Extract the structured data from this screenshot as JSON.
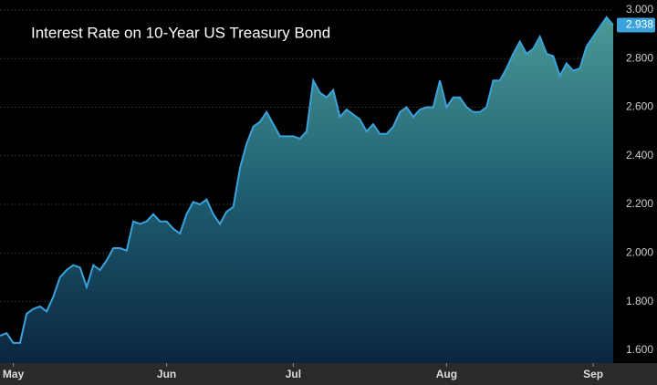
{
  "chart_data": {
    "type": "area",
    "title": "Interest Rate on 10-Year US Treasury Bond",
    "categories": [
      null,
      null,
      "May",
      null,
      null,
      null,
      null,
      null,
      null,
      null,
      null,
      null,
      null,
      null,
      null,
      null,
      null,
      null,
      null,
      null,
      null,
      null,
      null,
      null,
      null,
      "Jun",
      null,
      null,
      null,
      null,
      null,
      null,
      null,
      null,
      null,
      null,
      null,
      null,
      null,
      null,
      null,
      null,
      null,
      null,
      "Jul",
      null,
      null,
      null,
      null,
      null,
      null,
      null,
      null,
      null,
      null,
      null,
      null,
      null,
      null,
      null,
      null,
      null,
      null,
      null,
      null,
      null,
      null,
      "Aug",
      null,
      null,
      null,
      null,
      null,
      null,
      null,
      null,
      null,
      null,
      null,
      null,
      null,
      null,
      null,
      null,
      null,
      null,
      null,
      null,
      null,
      "Sep",
      null,
      null,
      null
    ],
    "values": [
      1.66,
      1.67,
      1.63,
      1.63,
      1.75,
      1.77,
      1.78,
      1.76,
      1.82,
      1.9,
      1.93,
      1.95,
      1.94,
      1.86,
      1.95,
      1.93,
      1.97,
      2.02,
      2.02,
      2.01,
      2.13,
      2.12,
      2.13,
      2.16,
      2.13,
      2.13,
      2.1,
      2.08,
      2.16,
      2.21,
      2.2,
      2.22,
      2.16,
      2.12,
      2.17,
      2.19,
      2.35,
      2.45,
      2.52,
      2.54,
      2.58,
      2.53,
      2.48,
      2.48,
      2.48,
      2.47,
      2.5,
      2.71,
      2.66,
      2.64,
      2.67,
      2.56,
      2.59,
      2.57,
      2.55,
      2.5,
      2.53,
      2.49,
      2.49,
      2.52,
      2.58,
      2.6,
      2.56,
      2.59,
      2.6,
      2.6,
      2.71,
      2.6,
      2.64,
      2.64,
      2.6,
      2.58,
      2.58,
      2.6,
      2.71,
      2.71,
      2.76,
      2.82,
      2.87,
      2.82,
      2.84,
      2.89,
      2.82,
      2.81,
      2.73,
      2.78,
      2.75,
      2.76,
      2.85,
      2.89,
      2.93,
      2.97,
      2.938
    ],
    "color": "#3aa3dc",
    "ylim": [
      1.547,
      3.041
    ],
    "yticks": [
      {
        "value": 1.6,
        "label": "1.600"
      },
      {
        "value": 1.8,
        "label": "1.800"
      },
      {
        "value": 2.0,
        "label": "2.000"
      },
      {
        "value": 2.2,
        "label": "2.200"
      },
      {
        "value": 2.4,
        "label": "2.400"
      },
      {
        "value": 2.6,
        "label": "2.600"
      },
      {
        "value": 2.8,
        "label": "2.800"
      },
      {
        "value": 3.0,
        "label": "3.000"
      }
    ],
    "grid": true
  }
}
